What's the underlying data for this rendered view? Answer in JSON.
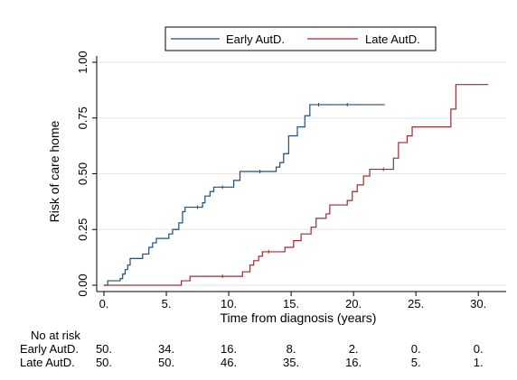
{
  "chart_data": {
    "type": "line",
    "xlabel": "Time from diagnosis (years)",
    "ylabel": "Risk of care home",
    "xlim": [
      0,
      31
    ],
    "ylim": [
      0,
      1
    ],
    "x_ticks": [
      0,
      5,
      10,
      15,
      20,
      25,
      30
    ],
    "x_tick_labels": [
      "0.",
      "5.",
      "10.",
      "15.",
      "20.",
      "25.",
      "30."
    ],
    "y_ticks": [
      0,
      0.25,
      0.5,
      0.75,
      1.0
    ],
    "y_tick_labels": [
      "0.00",
      "0.25",
      "0.50",
      "0.75",
      "1.00"
    ],
    "grid": true,
    "legend_position": "top",
    "series": [
      {
        "name": "Early AutD.",
        "color": "#1f4e79",
        "step_points": [
          [
            0,
            0
          ],
          [
            0.3,
            0.02
          ],
          [
            1.3,
            0.03
          ],
          [
            1.5,
            0.05
          ],
          [
            1.7,
            0.07
          ],
          [
            1.9,
            0.09
          ],
          [
            2.1,
            0.12
          ],
          [
            3.1,
            0.14
          ],
          [
            3.6,
            0.17
          ],
          [
            3.9,
            0.19
          ],
          [
            4.2,
            0.21
          ],
          [
            5.2,
            0.23
          ],
          [
            5.5,
            0.25
          ],
          [
            6.0,
            0.28
          ],
          [
            6.3,
            0.33
          ],
          [
            6.5,
            0.35
          ],
          [
            7.9,
            0.37
          ],
          [
            8.1,
            0.4
          ],
          [
            8.5,
            0.42
          ],
          [
            8.8,
            0.44
          ],
          [
            10.4,
            0.47
          ],
          [
            10.9,
            0.51
          ],
          [
            13.8,
            0.53
          ],
          [
            14.1,
            0.55
          ],
          [
            14.4,
            0.59
          ],
          [
            14.8,
            0.67
          ],
          [
            15.5,
            0.71
          ],
          [
            16.1,
            0.76
          ],
          [
            16.5,
            0.81
          ],
          [
            22.5,
            0.81
          ]
        ],
        "censor_x": [
          7.5,
          9.5,
          12.5,
          17.2,
          19.5
        ]
      },
      {
        "name": "Late AutD.",
        "color": "#9b2d30",
        "step_points": [
          [
            0,
            0
          ],
          [
            6.2,
            0.02
          ],
          [
            6.9,
            0.04
          ],
          [
            11.1,
            0.06
          ],
          [
            11.7,
            0.09
          ],
          [
            12.0,
            0.11
          ],
          [
            12.4,
            0.13
          ],
          [
            12.7,
            0.15
          ],
          [
            14.5,
            0.17
          ],
          [
            15.2,
            0.2
          ],
          [
            15.8,
            0.23
          ],
          [
            16.6,
            0.26
          ],
          [
            17.0,
            0.3
          ],
          [
            17.8,
            0.32
          ],
          [
            18.1,
            0.36
          ],
          [
            19.5,
            0.38
          ],
          [
            19.9,
            0.42
          ],
          [
            20.3,
            0.45
          ],
          [
            20.8,
            0.49
          ],
          [
            21.3,
            0.52
          ],
          [
            22.3,
            0.52
          ],
          [
            23.2,
            0.57
          ],
          [
            23.6,
            0.64
          ],
          [
            24.3,
            0.67
          ],
          [
            24.7,
            0.71
          ],
          [
            27.8,
            0.79
          ],
          [
            28.2,
            0.9
          ],
          [
            30.8,
            0.9
          ]
        ],
        "censor_x": [
          9.5,
          13.2,
          22.4
        ]
      }
    ],
    "risk_table": {
      "title": "No at risk",
      "rows": [
        {
          "label": "Early AutD.",
          "values": [
            "50.",
            "34.",
            "16.",
            "8.",
            "2.",
            "0.",
            "0."
          ]
        },
        {
          "label": "Late AutD.",
          "values": [
            "50.",
            "50.",
            "46.",
            "35.",
            "16.",
            "5.",
            "1."
          ]
        }
      ]
    }
  }
}
